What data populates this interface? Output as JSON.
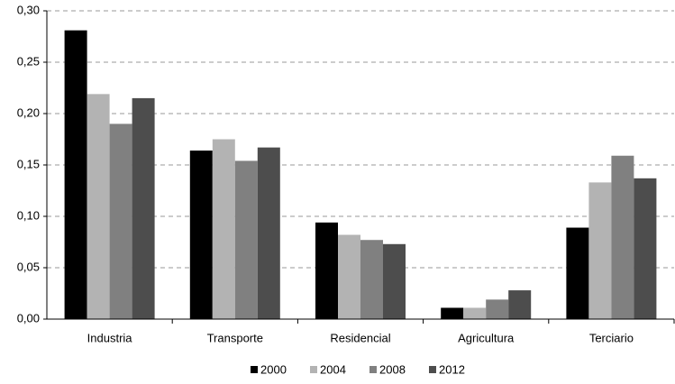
{
  "chart_data": {
    "type": "bar",
    "categories": [
      "Industria",
      "Transporte",
      "Residencial",
      "Agricultura",
      "Terciario"
    ],
    "series": [
      {
        "name": "2000",
        "color": "#000000",
        "values": [
          0.281,
          0.164,
          0.094,
          0.011,
          0.089
        ]
      },
      {
        "name": "2004",
        "color": "#b3b3b3",
        "values": [
          0.219,
          0.175,
          0.082,
          0.011,
          0.133
        ]
      },
      {
        "name": "2008",
        "color": "#808080",
        "values": [
          0.19,
          0.154,
          0.077,
          0.019,
          0.159
        ]
      },
      {
        "name": "2012",
        "color": "#4d4d4d",
        "values": [
          0.215,
          0.167,
          0.073,
          0.028,
          0.137
        ]
      }
    ],
    "ylim": [
      0,
      0.3
    ],
    "yticks": [
      {
        "value": 0,
        "label": "0,00"
      },
      {
        "value": 0.05,
        "label": "0,05"
      },
      {
        "value": 0.1,
        "label": "0,10"
      },
      {
        "value": 0.15,
        "label": "0,15"
      },
      {
        "value": 0.2,
        "label": "0,20"
      },
      {
        "value": 0.25,
        "label": "0,25"
      },
      {
        "value": 0.3,
        "label": "0,30"
      }
    ],
    "grid": true,
    "legend": "bottom"
  }
}
